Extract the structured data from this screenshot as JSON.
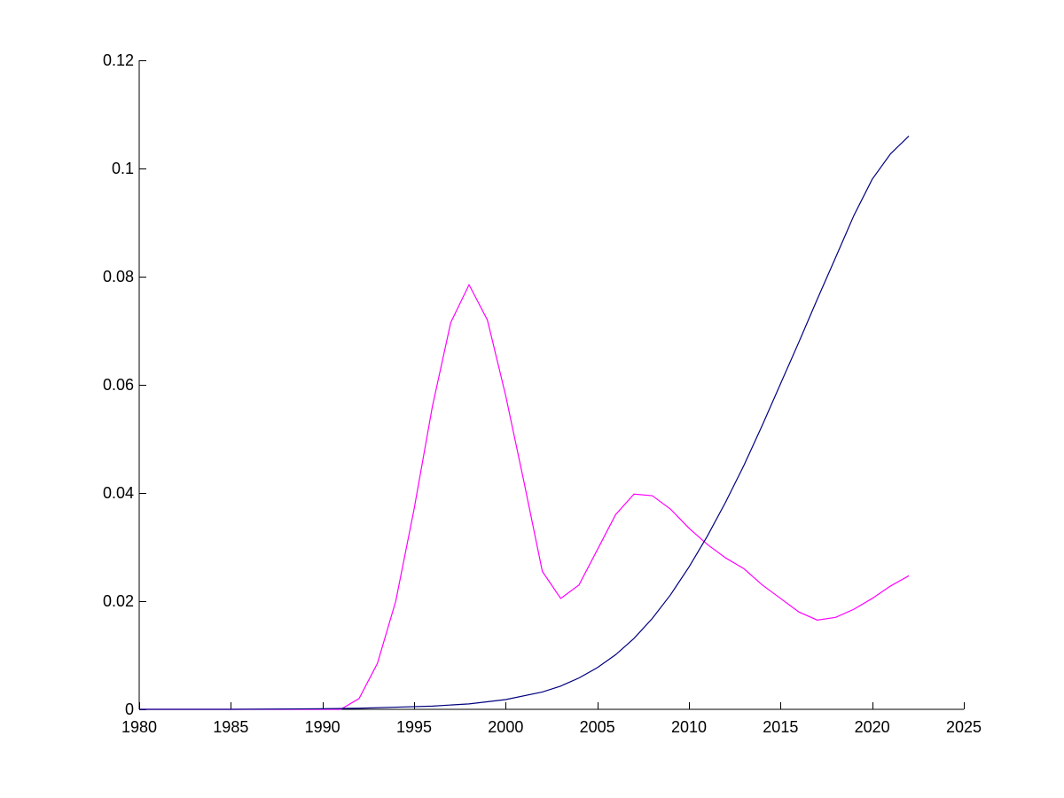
{
  "chart_data": {
    "type": "line",
    "title": "",
    "xlabel": "",
    "ylabel": "",
    "xlim": [
      1980,
      2025
    ],
    "ylim": [
      0,
      0.12
    ],
    "grid": false,
    "x_ticks": [
      1980,
      1985,
      1990,
      1995,
      2000,
      2005,
      2010,
      2015,
      2020,
      2025
    ],
    "x_tick_labels": [
      "1980",
      "1985",
      "1990",
      "1995",
      "2000",
      "2005",
      "2010",
      "2015",
      "2020",
      "2025"
    ],
    "y_ticks": [
      0,
      0.02,
      0.04,
      0.06,
      0.08,
      0.1,
      0.12
    ],
    "y_tick_labels": [
      "0",
      "0.02",
      "0.04",
      "0.06",
      "0.08",
      "0.1",
      "0.12"
    ],
    "series": [
      {
        "color": "#ff00ff",
        "x": [
          1980,
          1985,
          1990,
          1991,
          1992,
          1993,
          1994,
          1995,
          1996,
          1997,
          1998,
          1999,
          2000,
          2001,
          2002,
          2003,
          2004,
          2005,
          2006,
          2007,
          2008,
          2009,
          2010,
          2011,
          2012,
          2013,
          2014,
          2015,
          2016,
          2017,
          2018,
          2019,
          2020,
          2021,
          2022
        ],
        "y": [
          0,
          0,
          0,
          0,
          0.002,
          0.0085,
          0.02,
          0.037,
          0.056,
          0.0715,
          0.0785,
          0.072,
          0.058,
          0.042,
          0.0255,
          0.0205,
          0.023,
          0.0295,
          0.036,
          0.0398,
          0.0395,
          0.037,
          0.0335,
          0.0305,
          0.028,
          0.026,
          0.023,
          0.0205,
          0.018,
          0.0165,
          0.017,
          0.0185,
          0.0205,
          0.0228,
          0.0247
        ]
      },
      {
        "color": "#00007f",
        "x": [
          1980,
          1985,
          1990,
          1992,
          1994,
          1996,
          1998,
          2000,
          2002,
          2003,
          2004,
          2005,
          2006,
          2007,
          2008,
          2009,
          2010,
          2011,
          2012,
          2013,
          2014,
          2015,
          2016,
          2017,
          2018,
          2019,
          2020,
          2021,
          2022
        ],
        "y": [
          0,
          0,
          0.0001,
          0.0002,
          0.0004,
          0.0006,
          0.001,
          0.0018,
          0.0032,
          0.0043,
          0.0058,
          0.0077,
          0.0101,
          0.0131,
          0.0168,
          0.0212,
          0.0263,
          0.032,
          0.0383,
          0.0451,
          0.0525,
          0.0602,
          0.0679,
          0.0758,
          0.0835,
          0.0913,
          0.098,
          0.1027,
          0.106
        ]
      }
    ]
  }
}
